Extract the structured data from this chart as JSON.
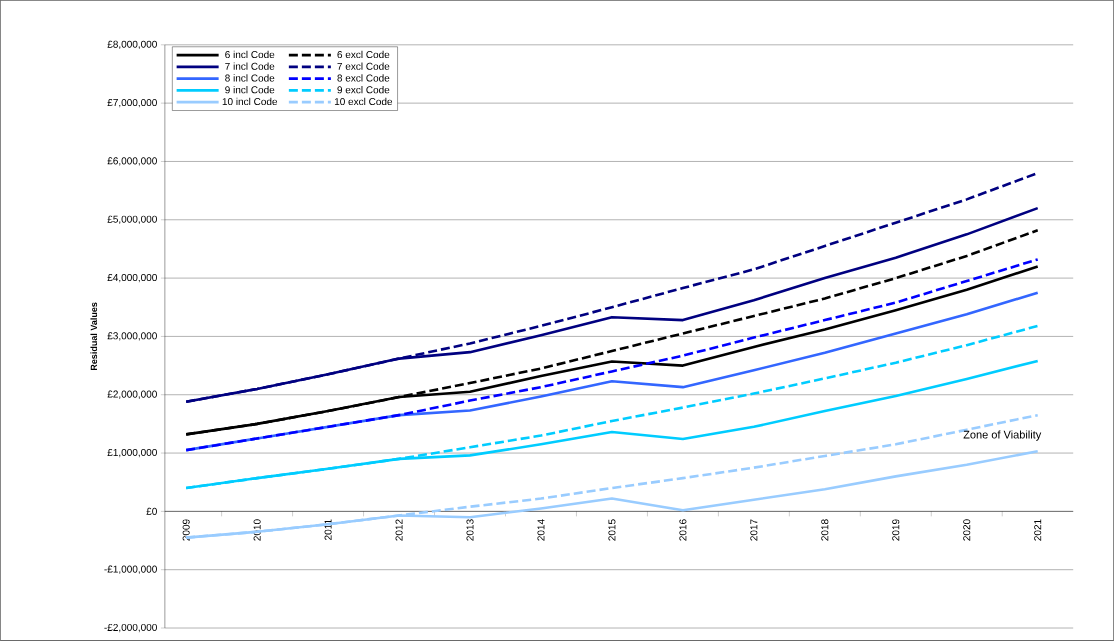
{
  "chart_data": {
    "type": "line",
    "ylabel": "Residual Values",
    "categories": [
      "2009",
      "2010",
      "2011",
      "2012",
      "2013",
      "2014",
      "2015",
      "2016",
      "2017",
      "2018",
      "2019",
      "2020",
      "2021"
    ],
    "ylim": [
      -2000000,
      8000000
    ],
    "yticks": [
      {
        "value": -2000000,
        "label": "-£2,000,000"
      },
      {
        "value": -1000000,
        "label": "-£1,000,000"
      },
      {
        "value": 0,
        "label": "£0"
      },
      {
        "value": 1000000,
        "label": "£1,000,000"
      },
      {
        "value": 2000000,
        "label": "£2,000,000"
      },
      {
        "value": 3000000,
        "label": "£3,000,000"
      },
      {
        "value": 4000000,
        "label": "£4,000,000"
      },
      {
        "value": 5000000,
        "label": "£5,000,000"
      },
      {
        "value": 6000000,
        "label": "£6,000,000"
      },
      {
        "value": 7000000,
        "label": "£7,000,000"
      },
      {
        "value": 8000000,
        "label": "£8,000,000"
      }
    ],
    "grid": "y",
    "legend": "top left",
    "marker": "none",
    "annotations": [
      {
        "text": "Zone of Viability",
        "x": "2020",
        "y": 1300000
      }
    ],
    "series": [
      {
        "name": "6 incl Code",
        "color": "#000000",
        "line_style": "solid",
        "values": [
          1320000,
          1500000,
          1720000,
          1960000,
          2050000,
          2320000,
          2570000,
          2500000,
          2820000,
          3120000,
          3450000,
          3800000,
          4200000
        ]
      },
      {
        "name": "6 excl Code",
        "color": "#000000",
        "line_style": "dashed",
        "values": [
          1320000,
          1500000,
          1720000,
          1960000,
          2200000,
          2450000,
          2750000,
          3050000,
          3350000,
          3650000,
          4000000,
          4380000,
          4820000
        ]
      },
      {
        "name": "7 incl Code",
        "color": "#000080",
        "line_style": "solid",
        "values": [
          1880000,
          2100000,
          2350000,
          2620000,
          2730000,
          3020000,
          3330000,
          3280000,
          3620000,
          4000000,
          4350000,
          4750000,
          5200000
        ]
      },
      {
        "name": "7 excl Code",
        "color": "#000080",
        "line_style": "dashed",
        "values": [
          1880000,
          2100000,
          2350000,
          2620000,
          2880000,
          3180000,
          3500000,
          3830000,
          4150000,
          4550000,
          4950000,
          5350000,
          5800000
        ]
      },
      {
        "name": "8 incl Code",
        "color": "#3366ff",
        "line_style": "solid",
        "values": [
          1050000,
          1250000,
          1450000,
          1650000,
          1730000,
          1970000,
          2230000,
          2130000,
          2420000,
          2720000,
          3050000,
          3380000,
          3750000
        ]
      },
      {
        "name": "8 excl Code",
        "color": "#0000ff",
        "line_style": "dashed",
        "values": [
          1050000,
          1250000,
          1450000,
          1650000,
          1900000,
          2130000,
          2400000,
          2670000,
          2980000,
          3280000,
          3580000,
          3950000,
          4320000
        ]
      },
      {
        "name": "9 incl Code",
        "color": "#00ccff",
        "line_style": "solid",
        "values": [
          400000,
          570000,
          730000,
          900000,
          960000,
          1150000,
          1360000,
          1240000,
          1450000,
          1720000,
          1980000,
          2270000,
          2580000
        ]
      },
      {
        "name": "9 excl Code",
        "color": "#00ccff",
        "line_style": "dashed",
        "values": [
          400000,
          570000,
          730000,
          900000,
          1100000,
          1300000,
          1550000,
          1780000,
          2020000,
          2280000,
          2550000,
          2850000,
          3180000
        ]
      },
      {
        "name": "10 incl Code",
        "color": "#99ccff",
        "line_style": "solid",
        "values": [
          -450000,
          -350000,
          -220000,
          -70000,
          -100000,
          50000,
          220000,
          20000,
          200000,
          380000,
          600000,
          800000,
          1030000
        ]
      },
      {
        "name": "10 excl Code",
        "color": "#99ccff",
        "line_style": "dashed",
        "values": [
          -450000,
          -350000,
          -220000,
          -70000,
          80000,
          220000,
          400000,
          570000,
          750000,
          950000,
          1150000,
          1400000,
          1650000
        ]
      }
    ]
  }
}
